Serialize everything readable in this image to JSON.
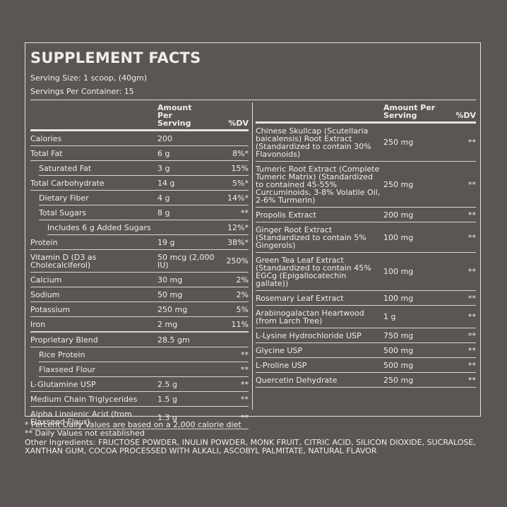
{
  "header": {
    "title": "SUPPLEMENT FACTS",
    "serving_size": "Serving Size: 1 scoop, (40gm)",
    "servings_per_container": "Servings Per Container: 15"
  },
  "left_table": {
    "columns": {
      "amount": "Amount Per Serving",
      "dv": "%DV"
    },
    "rows": [
      {
        "name": "Calories",
        "amount": "200"
      },
      {
        "name": "Total Fat",
        "amount": "6 g",
        "dv": "8%*"
      },
      {
        "name": "Saturated Fat",
        "amount": "3 g",
        "dv": "15%"
      },
      {
        "name": "Total Carbohydrate",
        "amount": "14 g",
        "dv": "5%*"
      },
      {
        "name": "Dietary Fiber",
        "amount": "4 g",
        "dv": "14%*"
      },
      {
        "name": "Total Sugars",
        "amount": "8 g",
        "dv": "**"
      },
      {
        "name": "Includes 6 g Added Sugars",
        "dv": "12%*"
      },
      {
        "name": "Protein",
        "amount": "19 g",
        "dv": "38%*"
      },
      {
        "name": "Vitamin D (D3 as Cholecalciferol)",
        "amount": "50 mcg (2,000 IU)",
        "dv": "250%"
      },
      {
        "name": "Calcium",
        "amount": "30 mg",
        "dv": "2%"
      },
      {
        "name": "Sodium",
        "amount": "50 mg",
        "dv": "2%"
      },
      {
        "name": "Potassium",
        "amount": "250 mg",
        "dv": "5%"
      },
      {
        "name": "Iron",
        "amount": "2 mg",
        "dv": "11%"
      },
      {
        "name": "Proprietary Blend",
        "amount": "28.5 gm"
      },
      {
        "name": "Rice Protein",
        "dv": "**"
      },
      {
        "name": "Flaxseed Flour",
        "dv": "**"
      },
      {
        "name": "L-Glutamine USP",
        "amount": "2.5 g",
        "dv": "**"
      },
      {
        "name": "Medium Chain Triglycerides",
        "amount": "1.5 g",
        "dv": "**"
      },
      {
        "name": "Alpha Linolenic Acid (from Flaxseed Flour)",
        "amount": "1.3 g",
        "dv": "**"
      }
    ]
  },
  "right_table": {
    "columns": {
      "amount": "Amount Per Serving",
      "dv": "%DV"
    },
    "rows": [
      {
        "name": "Chinese Skullcap (Scutellaria baicalensis) Root Extract (Standardized to contain 30% Flavonoids)",
        "amount": "250 mg",
        "dv": "**"
      },
      {
        "name": "Tumeric Root Extract (Complete Tumeric Matrix) (Standardized to contained 45-55% Curcuminoids, 3-8% Volatile Oil, 2-6% Turmerin)",
        "amount": "250 mg",
        "dv": "**"
      },
      {
        "name": "Propolis Extract",
        "amount": "200 mg",
        "dv": "**"
      },
      {
        "name": "Ginger Root Extract (Standardized to contain 5% Gingerols)",
        "amount": "100 mg",
        "dv": "**"
      },
      {
        "name": "Green Tea Leaf Extract (Standardized to contain 45% EGCg (Epigallocatechin gallate))",
        "amount": "100 mg",
        "dv": "**"
      },
      {
        "name": "Rosemary Leaf Extract",
        "amount": "100 mg",
        "dv": "**"
      },
      {
        "name": "Arabinogalactan Heartwood (from Larch Tree)",
        "amount": "1 g",
        "dv": "**"
      },
      {
        "name": "L-Lysine Hydrochloride USP",
        "amount": "750 mg",
        "dv": "**"
      },
      {
        "name": "Glycine USP",
        "amount": "500 mg",
        "dv": "**"
      },
      {
        "name": "L-Proline USP",
        "amount": "500 mg",
        "dv": "**"
      },
      {
        "name": "Quercetin Dehydrate",
        "amount": "250 mg",
        "dv": "**"
      }
    ]
  },
  "footnotes": [
    "* Percent Daily Values are based on a 2,000 calorie diet",
    "** Daily Values not established",
    "Other Ingredients: FRUCTOSE POWDER, INULIN POWDER, MONK FRUIT, CITRIC ACID, SILICON DIOXIDE, SUCRALOSE, XANTHAN GUM, COCOA PROCESSED WITH ALKALI, ASCOBYL PALMITATE, NATURAL FLAVOR"
  ]
}
